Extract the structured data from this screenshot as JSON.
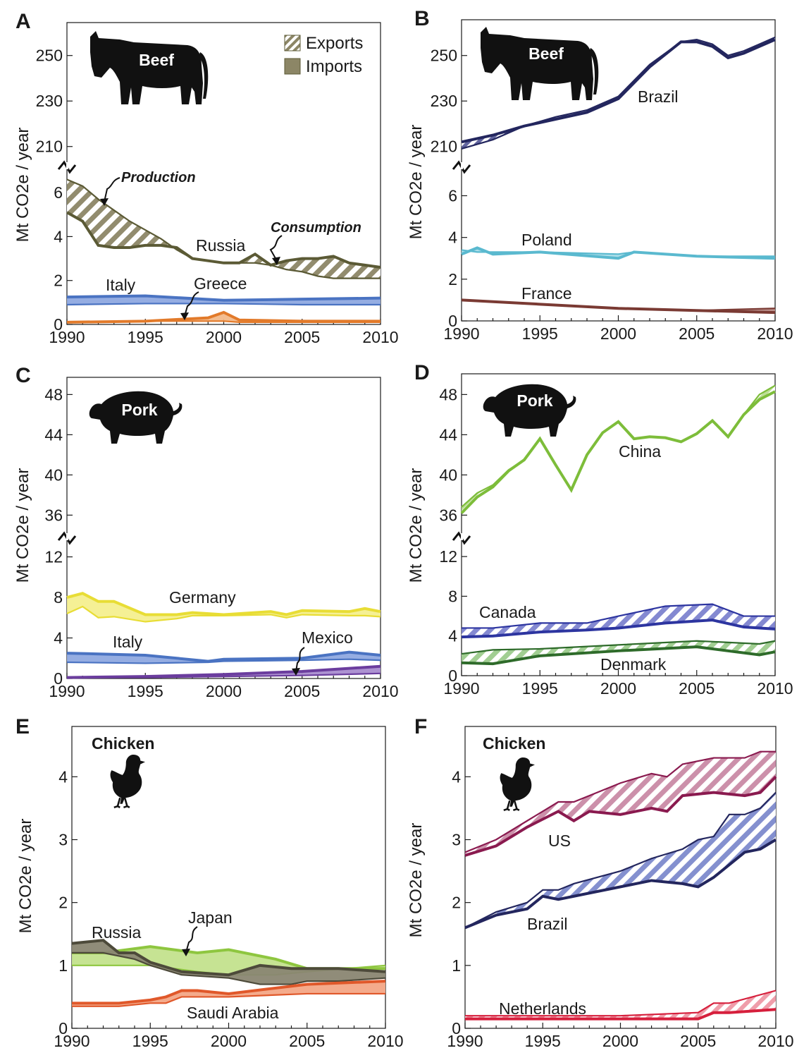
{
  "figure": {
    "legend": [
      {
        "label": "Exports",
        "style": "hatched"
      },
      {
        "label": "Imports",
        "style": "solid"
      }
    ]
  },
  "chart_data": [
    {
      "panel": "A",
      "type": "area",
      "animal": "Beef",
      "ylabel": "Mt CO2e / year",
      "x_ticks": [
        "1990",
        "1995",
        "2000",
        "2005",
        "2010"
      ],
      "y_ticks_lower": [
        "0",
        "2",
        "4",
        "6"
      ],
      "y_ticks_upper": [
        "210",
        "230",
        "250"
      ],
      "annotations": [
        "Production",
        "Consumption"
      ],
      "series": [
        {
          "name": "Russia",
          "color": "#5b5a35",
          "fill": "#8c8666",
          "x": [
            1990,
            1991,
            1992,
            1993,
            1994,
            1995,
            1996,
            1997,
            1998,
            1999,
            2000,
            2001,
            2002,
            2003,
            2004,
            2005,
            2006,
            2007,
            2008,
            2009,
            2010
          ],
          "production": [
            6.6,
            6.3,
            5.7,
            5.2,
            4.7,
            4.3,
            3.9,
            3.4,
            3.0,
            2.9,
            2.8,
            2.8,
            2.8,
            2.7,
            2.5,
            2.4,
            2.2,
            2.1,
            2.1,
            2.1,
            2.1
          ],
          "consumption": [
            5.1,
            4.7,
            3.6,
            3.5,
            3.5,
            3.6,
            3.6,
            3.5,
            3.0,
            2.9,
            2.8,
            2.8,
            3.2,
            2.7,
            2.9,
            3.0,
            3.0,
            3.1,
            2.8,
            2.7,
            2.6
          ]
        },
        {
          "name": "Italy",
          "color": "#4a73c2",
          "fill": "#8fa9e0",
          "x": [
            1990,
            1995,
            2000,
            2005,
            2010
          ],
          "production": [
            0.9,
            0.95,
            0.95,
            0.9,
            0.9
          ],
          "consumption": [
            1.25,
            1.3,
            1.1,
            1.15,
            1.2
          ]
        },
        {
          "name": "Greece",
          "color": "#e27a2a",
          "fill": "#f2b98a",
          "x": [
            1990,
            1995,
            1999,
            2000,
            2001,
            2005,
            2010
          ],
          "production": [
            0.1,
            0.15,
            0.15,
            0.15,
            0.1,
            0.1,
            0.1
          ],
          "consumption": [
            0.1,
            0.15,
            0.3,
            0.55,
            0.2,
            0.15,
            0.15
          ]
        }
      ]
    },
    {
      "panel": "B",
      "type": "area",
      "animal": "Beef",
      "ylabel": "Mt CO2e / year",
      "x_ticks": [
        "1990",
        "1995",
        "2000",
        "2005",
        "2010"
      ],
      "y_ticks_lower": [
        "0",
        "2",
        "4",
        "6"
      ],
      "y_ticks_upper": [
        "210",
        "230",
        "250"
      ],
      "series": [
        {
          "name": "Brazil",
          "color": "#23265e",
          "fill": "#5a5d9a",
          "x": [
            1990,
            1992,
            1994,
            1996,
            1998,
            2000,
            2002,
            2004,
            2005,
            2006,
            2007,
            2008,
            2009,
            2010
          ],
          "production": [
            209,
            213,
            219,
            223,
            226,
            232,
            246,
            256,
            257,
            255,
            250,
            252,
            255,
            258
          ],
          "consumption": [
            212,
            215,
            219,
            222,
            225,
            231,
            245,
            256,
            256,
            254,
            249,
            251,
            254,
            257
          ]
        },
        {
          "name": "Poland",
          "color": "#5ab9cf",
          "fill": "#a9dce8",
          "x": [
            1990,
            1991,
            1992,
            1995,
            2000,
            2001,
            2005,
            2010
          ],
          "production": [
            3.4,
            3.3,
            3.3,
            3.3,
            3.2,
            3.3,
            3.1,
            3.1
          ],
          "consumption": [
            3.2,
            3.5,
            3.2,
            3.3,
            3.0,
            3.3,
            3.1,
            3.0
          ]
        },
        {
          "name": "France",
          "color": "#7a3a33",
          "fill": "#b98d88",
          "x": [
            1990,
            1995,
            2000,
            2005,
            2010
          ],
          "production": [
            1.0,
            0.8,
            0.6,
            0.5,
            0.6
          ],
          "consumption": [
            1.0,
            0.8,
            0.6,
            0.5,
            0.4
          ]
        }
      ]
    },
    {
      "panel": "C",
      "type": "area",
      "animal": "Pork",
      "ylabel": "Mt CO2e / year",
      "x_ticks": [
        "1990",
        "1995",
        "2000",
        "2005",
        "2010"
      ],
      "y_ticks_lower": [
        "0",
        "4",
        "8",
        "12"
      ],
      "y_ticks_upper": [
        "36",
        "40",
        "44",
        "48"
      ],
      "series": [
        {
          "name": "Germany",
          "color": "#e8dd35",
          "fill": "#f4ef8f",
          "x": [
            1990,
            1991,
            1992,
            1993,
            1995,
            1997,
            1998,
            2000,
            2003,
            2004,
            2005,
            2008,
            2009,
            2010
          ],
          "production": [
            6.4,
            7.1,
            6.0,
            6.1,
            5.6,
            5.9,
            6.2,
            6.2,
            6.3,
            6.0,
            6.3,
            6.2,
            6.2,
            6.1
          ],
          "consumption": [
            8.0,
            8.4,
            7.6,
            7.6,
            6.3,
            6.3,
            6.5,
            6.3,
            6.6,
            6.3,
            6.7,
            6.6,
            6.9,
            6.6
          ]
        },
        {
          "name": "Italy",
          "color": "#4a73c2",
          "fill": "#8fa9e0",
          "x": [
            1990,
            1995,
            1999,
            2000,
            2005,
            2008,
            2010
          ],
          "production": [
            1.6,
            1.5,
            1.6,
            1.7,
            1.8,
            1.9,
            1.8
          ],
          "consumption": [
            2.5,
            2.3,
            1.7,
            1.9,
            2.0,
            2.6,
            2.3
          ]
        },
        {
          "name": "Mexico",
          "color": "#6b3d9e",
          "fill": "#a98ccf",
          "x": [
            1990,
            1995,
            2000,
            2005,
            2010
          ],
          "production": [
            0.1,
            0.1,
            0.2,
            0.3,
            0.5
          ],
          "consumption": [
            0.1,
            0.2,
            0.4,
            0.7,
            1.2
          ]
        }
      ]
    },
    {
      "panel": "D",
      "type": "area",
      "animal": "Pork",
      "ylabel": "Mt CO2e / year",
      "x_ticks": [
        "1990",
        "1995",
        "2000",
        "2005",
        "2010"
      ],
      "y_ticks_lower": [
        "0",
        "4",
        "8",
        "12"
      ],
      "y_ticks_upper": [
        "36",
        "40",
        "44",
        "48"
      ],
      "series": [
        {
          "name": "China",
          "color": "#7dbd3a",
          "fill": "#b9dc8f",
          "x": [
            1990,
            1991,
            1992,
            1993,
            1994,
            1995,
            1996,
            1997,
            1998,
            1999,
            2000,
            2001,
            2002,
            2003,
            2004,
            2005,
            2006,
            2007,
            2008,
            2009,
            2010
          ],
          "production": [
            36.8,
            38.2,
            39.0,
            40.5,
            41.5,
            43.7,
            41.0,
            38.6,
            42.0,
            44.2,
            45.3,
            43.6,
            43.8,
            43.7,
            43.3,
            44.1,
            45.4,
            43.8,
            46.0,
            48.0,
            48.9
          ],
          "consumption": [
            36.2,
            37.8,
            38.8,
            40.4,
            41.5,
            43.6,
            41.0,
            38.5,
            42.0,
            44.2,
            45.3,
            43.6,
            43.8,
            43.7,
            43.3,
            44.1,
            45.4,
            43.8,
            46.0,
            47.5,
            48.3
          ]
        },
        {
          "name": "Canada",
          "color": "#2d35a0",
          "fill": "#7e83cf",
          "x": [
            1990,
            1992,
            1995,
            1998,
            2000,
            2003,
            2006,
            2008,
            2010
          ],
          "production": [
            4.8,
            4.8,
            5.3,
            5.3,
            6.0,
            7.0,
            7.2,
            6.0,
            6.0
          ],
          "consumption": [
            3.9,
            4.0,
            4.4,
            4.6,
            4.8,
            5.3,
            5.6,
            4.9,
            4.7
          ]
        },
        {
          "name": "Denmark",
          "color": "#2e6b2a",
          "fill": "#9ccb8c",
          "x": [
            1990,
            1992,
            1995,
            2000,
            2005,
            2009,
            2010
          ],
          "production": [
            2.2,
            2.6,
            2.7,
            3.1,
            3.5,
            3.2,
            3.5
          ],
          "consumption": [
            1.3,
            1.2,
            2.0,
            2.5,
            2.9,
            2.1,
            2.4
          ]
        }
      ]
    },
    {
      "panel": "E",
      "type": "area",
      "animal": "Chicken",
      "ylabel": "Mt CO2e / year",
      "x_ticks": [
        "1990",
        "1995",
        "2000",
        "2005",
        "2010"
      ],
      "y_ticks": [
        "0",
        "1",
        "2",
        "3",
        "4"
      ],
      "series": [
        {
          "name": "Japan",
          "color": "#8ec63f",
          "fill": "#c3e28d",
          "x": [
            1990,
            1992,
            1995,
            1998,
            2000,
            2003,
            2005,
            2010
          ],
          "production": [
            1.0,
            1.0,
            1.0,
            0.9,
            0.85,
            0.85,
            0.9,
            1.0
          ],
          "consumption": [
            1.2,
            1.2,
            1.3,
            1.2,
            1.25,
            1.1,
            0.95,
            0.95
          ]
        },
        {
          "name": "Russia",
          "color": "#4d4a3a",
          "fill": "#8a8672",
          "x": [
            1990,
            1992,
            1993,
            1994,
            1995,
            1997,
            2000,
            2002,
            2004,
            2005,
            2007,
            2010
          ],
          "production": [
            1.2,
            1.2,
            1.15,
            1.1,
            1.0,
            0.85,
            0.8,
            0.7,
            0.7,
            0.75,
            0.75,
            0.8
          ],
          "consumption": [
            1.35,
            1.4,
            1.2,
            1.2,
            1.05,
            0.9,
            0.85,
            1.0,
            0.95,
            0.95,
            0.95,
            0.9
          ]
        },
        {
          "name": "Saudi Arabia",
          "color": "#e0582a",
          "fill": "#f3a786",
          "x": [
            1990,
            1993,
            1995,
            1996,
            1997,
            1998,
            2000,
            2005,
            2010
          ],
          "production": [
            0.35,
            0.35,
            0.4,
            0.4,
            0.5,
            0.5,
            0.5,
            0.55,
            0.55
          ],
          "consumption": [
            0.4,
            0.4,
            0.45,
            0.5,
            0.6,
            0.6,
            0.55,
            0.7,
            0.75
          ]
        }
      ]
    },
    {
      "panel": "F",
      "type": "area",
      "animal": "Chicken",
      "ylabel": "Mt CO2e / year",
      "x_ticks": [
        "1990",
        "1995",
        "2000",
        "2005",
        "2010"
      ],
      "y_ticks": [
        "0",
        "1",
        "2",
        "3",
        "4"
      ],
      "series": [
        {
          "name": "US",
          "color": "#8a1a4f",
          "fill": "#c98aa6",
          "x": [
            1990,
            1992,
            1994,
            1996,
            1997,
            1998,
            2000,
            2002,
            2003,
            2004,
            2006,
            2008,
            2009,
            2010
          ],
          "production": [
            2.8,
            3.0,
            3.3,
            3.6,
            3.6,
            3.7,
            3.9,
            4.05,
            4.0,
            4.2,
            4.3,
            4.3,
            4.4,
            4.4
          ],
          "consumption": [
            2.75,
            2.9,
            3.2,
            3.45,
            3.3,
            3.45,
            3.4,
            3.5,
            3.45,
            3.7,
            3.75,
            3.7,
            3.75,
            4.0
          ]
        },
        {
          "name": "Brazil",
          "color": "#23265e",
          "fill": "#7e8acc",
          "x": [
            1990,
            1992,
            1994,
            1995,
            1996,
            1997,
            2000,
            2002,
            2004,
            2005,
            2006,
            2007,
            2008,
            2009,
            2010
          ],
          "production": [
            1.6,
            1.85,
            2.0,
            2.2,
            2.2,
            2.3,
            2.5,
            2.7,
            2.85,
            3.0,
            3.05,
            3.4,
            3.4,
            3.5,
            3.75
          ],
          "consumption": [
            1.6,
            1.8,
            1.9,
            2.1,
            2.05,
            2.1,
            2.25,
            2.35,
            2.3,
            2.25,
            2.4,
            2.6,
            2.8,
            2.85,
            3.0
          ]
        },
        {
          "name": "Netherlands",
          "color": "#d61f3c",
          "fill": "#ee98a6",
          "x": [
            1990,
            1995,
            2000,
            2005,
            2006,
            2007,
            2010
          ],
          "production": [
            0.2,
            0.2,
            0.2,
            0.25,
            0.4,
            0.4,
            0.6
          ],
          "consumption": [
            0.15,
            0.15,
            0.15,
            0.15,
            0.25,
            0.25,
            0.3
          ]
        }
      ]
    }
  ]
}
